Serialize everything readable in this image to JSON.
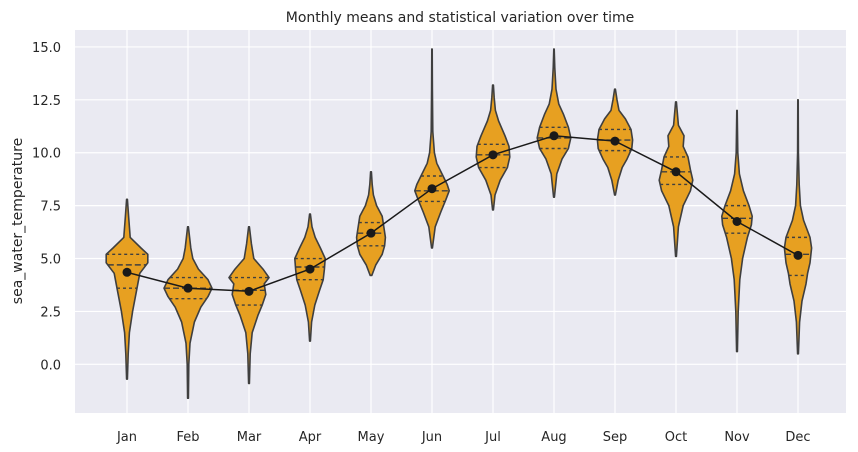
{
  "chart_data": {
    "type": "violin",
    "title": "Monthly means and statistical variation over time",
    "xlabel": "",
    "ylabel": "sea_water_temperature",
    "categories": [
      "Jan",
      "Feb",
      "Mar",
      "Apr",
      "May",
      "Jun",
      "Jul",
      "Aug",
      "Sep",
      "Oct",
      "Nov",
      "Dec"
    ],
    "ylim": [
      -2.3,
      15.8
    ],
    "yticks": [
      "0.0",
      "2.5",
      "5.0",
      "7.5",
      "10.0",
      "12.5",
      "15.0"
    ],
    "grid": true,
    "colors": {
      "violin": "#E7A021",
      "outline": "#3f3f3f",
      "mean_line": "#1a1a1a",
      "background": "#EAEAF2",
      "grid": "#ffffff"
    },
    "series": [
      {
        "name": "mean",
        "values": [
          4.35,
          3.6,
          3.45,
          4.5,
          6.2,
          8.3,
          9.9,
          10.8,
          10.55,
          9.1,
          6.75,
          5.15
        ]
      }
    ],
    "violins": [
      {
        "min": -0.7,
        "max": 7.8,
        "q1": 3.6,
        "median": 4.7,
        "q3": 5.2,
        "profile": [
          [
            -0.7,
            0.01
          ],
          [
            0.5,
            0.03
          ],
          [
            1.5,
            0.06
          ],
          [
            2.5,
            0.14
          ],
          [
            3.5,
            0.24
          ],
          [
            4.3,
            0.32
          ],
          [
            4.8,
            0.52
          ],
          [
            5.2,
            0.52
          ],
          [
            5.5,
            0.35
          ],
          [
            6.0,
            0.08
          ],
          [
            7.0,
            0.04
          ],
          [
            7.8,
            0.01
          ]
        ]
      },
      {
        "min": -1.6,
        "max": 6.5,
        "q1": 3.1,
        "median": 3.6,
        "q3": 4.1,
        "profile": [
          [
            -1.6,
            0.01
          ],
          [
            0.0,
            0.02
          ],
          [
            1.0,
            0.05
          ],
          [
            2.0,
            0.16
          ],
          [
            2.7,
            0.32
          ],
          [
            3.2,
            0.5
          ],
          [
            3.6,
            0.6
          ],
          [
            4.0,
            0.5
          ],
          [
            4.5,
            0.26
          ],
          [
            5.0,
            0.12
          ],
          [
            5.5,
            0.07
          ],
          [
            6.0,
            0.04
          ],
          [
            6.5,
            0.01
          ]
        ]
      },
      {
        "min": -0.9,
        "max": 6.5,
        "q1": 2.8,
        "median": 3.5,
        "q3": 4.1,
        "profile": [
          [
            -0.9,
            0.01
          ],
          [
            0.5,
            0.03
          ],
          [
            1.5,
            0.08
          ],
          [
            2.3,
            0.22
          ],
          [
            2.8,
            0.33
          ],
          [
            3.3,
            0.42
          ],
          [
            3.8,
            0.38
          ],
          [
            4.1,
            0.5
          ],
          [
            4.5,
            0.35
          ],
          [
            5.0,
            0.12
          ],
          [
            5.7,
            0.06
          ],
          [
            6.5,
            0.01
          ]
        ]
      },
      {
        "min": 1.1,
        "max": 7.1,
        "q1": 4.0,
        "median": 4.6,
        "q3": 5.0,
        "profile": [
          [
            1.1,
            0.01
          ],
          [
            2.0,
            0.04
          ],
          [
            2.8,
            0.12
          ],
          [
            3.5,
            0.24
          ],
          [
            4.0,
            0.33
          ],
          [
            4.5,
            0.36
          ],
          [
            5.0,
            0.38
          ],
          [
            5.5,
            0.26
          ],
          [
            6.0,
            0.13
          ],
          [
            6.5,
            0.05
          ],
          [
            7.1,
            0.01
          ]
        ]
      },
      {
        "min": 4.2,
        "max": 9.1,
        "q1": 5.6,
        "median": 6.2,
        "q3": 6.7,
        "profile": [
          [
            4.2,
            0.02
          ],
          [
            4.7,
            0.12
          ],
          [
            5.2,
            0.28
          ],
          [
            5.6,
            0.34
          ],
          [
            6.0,
            0.36
          ],
          [
            6.5,
            0.32
          ],
          [
            7.0,
            0.28
          ],
          [
            7.5,
            0.14
          ],
          [
            8.0,
            0.06
          ],
          [
            8.5,
            0.03
          ],
          [
            9.1,
            0.01
          ]
        ]
      },
      {
        "min": 5.5,
        "max": 14.9,
        "q1": 7.7,
        "median": 8.2,
        "q3": 8.9,
        "profile": [
          [
            5.5,
            0.01
          ],
          [
            6.5,
            0.08
          ],
          [
            7.2,
            0.22
          ],
          [
            7.8,
            0.35
          ],
          [
            8.2,
            0.43
          ],
          [
            8.5,
            0.38
          ],
          [
            9.0,
            0.25
          ],
          [
            9.5,
            0.12
          ],
          [
            10.0,
            0.06
          ],
          [
            11.0,
            0.02
          ],
          [
            13.0,
            0.01
          ],
          [
            14.9,
            0.005
          ]
        ]
      },
      {
        "min": 7.3,
        "max": 13.2,
        "q1": 9.3,
        "median": 9.9,
        "q3": 10.4,
        "profile": [
          [
            7.3,
            0.01
          ],
          [
            8.0,
            0.05
          ],
          [
            8.7,
            0.18
          ],
          [
            9.3,
            0.36
          ],
          [
            9.8,
            0.42
          ],
          [
            10.3,
            0.4
          ],
          [
            10.8,
            0.3
          ],
          [
            11.5,
            0.14
          ],
          [
            12.0,
            0.06
          ],
          [
            12.6,
            0.03
          ],
          [
            13.2,
            0.01
          ]
        ]
      },
      {
        "min": 7.9,
        "max": 14.9,
        "q1": 10.2,
        "median": 10.7,
        "q3": 11.2,
        "profile": [
          [
            7.9,
            0.01
          ],
          [
            9.0,
            0.07
          ],
          [
            9.7,
            0.2
          ],
          [
            10.2,
            0.36
          ],
          [
            10.7,
            0.42
          ],
          [
            11.2,
            0.36
          ],
          [
            11.8,
            0.24
          ],
          [
            12.3,
            0.12
          ],
          [
            13.0,
            0.05
          ],
          [
            14.0,
            0.02
          ],
          [
            14.9,
            0.005
          ]
        ]
      },
      {
        "min": 8.0,
        "max": 13.0,
        "q1": 10.1,
        "median": 10.6,
        "q3": 11.1,
        "profile": [
          [
            8.0,
            0.01
          ],
          [
            8.7,
            0.08
          ],
          [
            9.3,
            0.18
          ],
          [
            9.7,
            0.3
          ],
          [
            10.2,
            0.42
          ],
          [
            10.6,
            0.44
          ],
          [
            11.1,
            0.4
          ],
          [
            11.6,
            0.26
          ],
          [
            12.0,
            0.1
          ],
          [
            12.5,
            0.05
          ],
          [
            13.0,
            0.01
          ]
        ]
      },
      {
        "min": 5.1,
        "max": 12.4,
        "q1": 8.5,
        "median": 9.1,
        "q3": 9.8,
        "profile": [
          [
            5.1,
            0.01
          ],
          [
            6.5,
            0.06
          ],
          [
            7.5,
            0.18
          ],
          [
            8.2,
            0.36
          ],
          [
            8.7,
            0.42
          ],
          [
            9.2,
            0.36
          ],
          [
            9.8,
            0.3
          ],
          [
            10.3,
            0.18
          ],
          [
            10.8,
            0.2
          ],
          [
            11.3,
            0.06
          ],
          [
            12.4,
            0.01
          ]
        ]
      },
      {
        "min": 0.6,
        "max": 12.0,
        "q1": 6.2,
        "median": 6.9,
        "q3": 7.5,
        "profile": [
          [
            0.6,
            0.01
          ],
          [
            2.5,
            0.03
          ],
          [
            4.0,
            0.07
          ],
          [
            5.0,
            0.14
          ],
          [
            6.0,
            0.26
          ],
          [
            6.6,
            0.36
          ],
          [
            7.0,
            0.38
          ],
          [
            7.5,
            0.3
          ],
          [
            8.2,
            0.16
          ],
          [
            9.0,
            0.06
          ],
          [
            10.0,
            0.02
          ],
          [
            12.0,
            0.005
          ]
        ]
      },
      {
        "min": 0.5,
        "max": 12.5,
        "q1": 4.2,
        "median": 5.2,
        "q3": 6.0,
        "profile": [
          [
            0.5,
            0.01
          ],
          [
            2.0,
            0.04
          ],
          [
            3.0,
            0.1
          ],
          [
            3.8,
            0.2
          ],
          [
            4.3,
            0.24
          ],
          [
            4.8,
            0.3
          ],
          [
            5.5,
            0.34
          ],
          [
            6.0,
            0.3
          ],
          [
            6.8,
            0.14
          ],
          [
            7.5,
            0.06
          ],
          [
            8.5,
            0.03
          ],
          [
            10.0,
            0.01
          ],
          [
            12.5,
            0.005
          ]
        ]
      }
    ]
  }
}
